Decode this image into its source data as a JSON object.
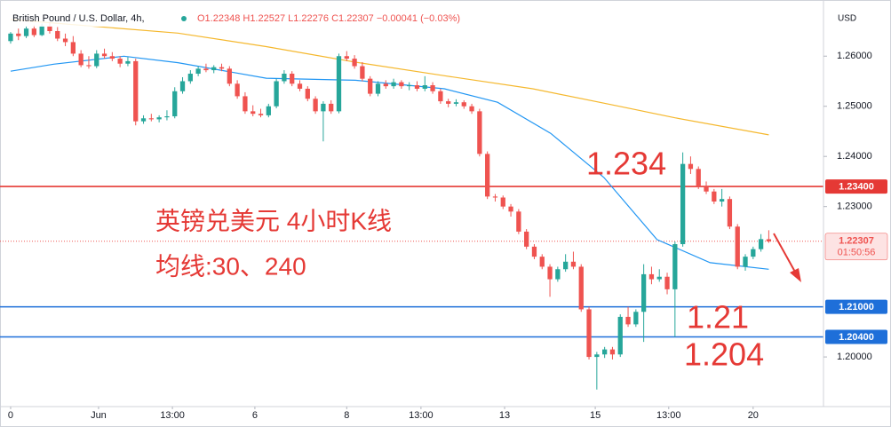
{
  "chart_data": {
    "type": "candlestick",
    "title": "British Pound / U.S. Dollar, 4h,",
    "ohlc_text": "O1.22348 H1.22527 L1.22276 C1.22307 −0.00041 (−0.03%)",
    "currency": "USD",
    "up_color": "#26a69a",
    "down_color": "#ef5350",
    "candles": [
      [
        1.263,
        1.2648,
        1.2625,
        1.2645
      ],
      [
        1.2645,
        1.2655,
        1.2632,
        1.264
      ],
      [
        1.264,
        1.266,
        1.2636,
        1.2655
      ],
      [
        1.2655,
        1.2662,
        1.2638,
        1.2642
      ],
      [
        1.2642,
        1.2665,
        1.264,
        1.266
      ],
      [
        1.266,
        1.2668,
        1.2645,
        1.265
      ],
      [
        1.265,
        1.2658,
        1.263,
        1.2635
      ],
      [
        1.2635,
        1.2645,
        1.262,
        1.2628
      ],
      [
        1.2628,
        1.264,
        1.26,
        1.2605
      ],
      [
        1.2605,
        1.2612,
        1.2578,
        1.2582
      ],
      [
        1.2582,
        1.26,
        1.2575,
        1.258
      ],
      [
        1.258,
        1.2612,
        1.2576,
        1.2605
      ],
      [
        1.2605,
        1.2615,
        1.2595,
        1.26
      ],
      [
        1.26,
        1.2608,
        1.259,
        1.2595
      ],
      [
        1.2595,
        1.26,
        1.2578,
        1.2585
      ],
      [
        1.2585,
        1.2598,
        1.258,
        1.259
      ],
      [
        1.259,
        1.2595,
        1.2462,
        1.247
      ],
      [
        1.247,
        1.2482,
        1.2465,
        1.2476
      ],
      [
        1.2476,
        1.2485,
        1.247,
        1.2474
      ],
      [
        1.2474,
        1.2482,
        1.2468,
        1.2478
      ],
      [
        1.2478,
        1.2492,
        1.2472,
        1.248
      ],
      [
        1.248,
        1.2538,
        1.2476,
        1.253
      ],
      [
        1.253,
        1.2558,
        1.2525,
        1.255
      ],
      [
        1.255,
        1.2572,
        1.2545,
        1.2565
      ],
      [
        1.2565,
        1.258,
        1.256,
        1.2575
      ],
      [
        1.2575,
        1.2585,
        1.2568,
        1.2572
      ],
      [
        1.2572,
        1.2582,
        1.2566,
        1.2578
      ],
      [
        1.2578,
        1.2585,
        1.257,
        1.2575
      ],
      [
        1.2575,
        1.258,
        1.254,
        1.2545
      ],
      [
        1.2545,
        1.2552,
        1.2515,
        1.252
      ],
      [
        1.252,
        1.2528,
        1.2485,
        1.249
      ],
      [
        1.249,
        1.2502,
        1.248,
        1.2485
      ],
      [
        1.2485,
        1.2495,
        1.2478,
        1.2482
      ],
      [
        1.2482,
        1.2505,
        1.2478,
        1.25
      ],
      [
        1.25,
        1.2555,
        1.2496,
        1.255
      ],
      [
        1.255,
        1.2572,
        1.2545,
        1.2565
      ],
      [
        1.2565,
        1.257,
        1.254,
        1.2545
      ],
      [
        1.2545,
        1.2552,
        1.253,
        1.2535
      ],
      [
        1.2535,
        1.254,
        1.251,
        1.2515
      ],
      [
        1.2515,
        1.252,
        1.2485,
        1.249
      ],
      [
        1.249,
        1.251,
        1.243,
        1.2505
      ],
      [
        1.2505,
        1.2512,
        1.2485,
        1.249
      ],
      [
        1.249,
        1.2605,
        1.2486,
        1.26
      ],
      [
        1.26,
        1.261,
        1.259,
        1.2595
      ],
      [
        1.2595,
        1.2602,
        1.2575,
        1.258
      ],
      [
        1.258,
        1.2588,
        1.255,
        1.2555
      ],
      [
        1.2555,
        1.256,
        1.252,
        1.2525
      ],
      [
        1.2525,
        1.255,
        1.252,
        1.2545
      ],
      [
        1.2545,
        1.2552,
        1.2535,
        1.254
      ],
      [
        1.254,
        1.2555,
        1.2535,
        1.2548
      ],
      [
        1.2548,
        1.2552,
        1.2535,
        1.254
      ],
      [
        1.254,
        1.2548,
        1.2532,
        1.2542
      ],
      [
        1.2542,
        1.255,
        1.253,
        1.2535
      ],
      [
        1.2535,
        1.256,
        1.253,
        1.2542
      ],
      [
        1.2542,
        1.2548,
        1.2525,
        1.253
      ],
      [
        1.253,
        1.2535,
        1.2505,
        1.251
      ],
      [
        1.251,
        1.2515,
        1.2498,
        1.2505
      ],
      [
        1.2505,
        1.2514,
        1.25,
        1.2508
      ],
      [
        1.2508,
        1.2512,
        1.2495,
        1.25
      ],
      [
        1.25,
        1.2505,
        1.2485,
        1.249
      ],
      [
        1.249,
        1.2495,
        1.24,
        1.2405
      ],
      [
        1.2405,
        1.241,
        1.2315,
        1.232
      ],
      [
        1.232,
        1.2325,
        1.231,
        1.2318
      ],
      [
        1.2318,
        1.2322,
        1.2295,
        1.23
      ],
      [
        1.23,
        1.2305,
        1.228,
        1.229
      ],
      [
        1.229,
        1.2295,
        1.2245,
        1.225
      ],
      [
        1.225,
        1.2255,
        1.2215,
        1.222
      ],
      [
        1.222,
        1.2225,
        1.2195,
        1.22
      ],
      [
        1.22,
        1.2205,
        1.2175,
        1.218
      ],
      [
        1.218,
        1.2185,
        1.212,
        1.2155
      ],
      [
        1.2155,
        1.218,
        1.215,
        1.2175
      ],
      [
        1.2175,
        1.2205,
        1.217,
        1.219
      ],
      [
        1.219,
        1.221,
        1.2175,
        1.218
      ],
      [
        1.218,
        1.2185,
        1.209,
        1.2095
      ],
      [
        1.2095,
        1.21,
        1.1995,
        1.2
      ],
      [
        1.2,
        1.201,
        1.1935,
        1.2005
      ],
      [
        1.2005,
        1.202,
        1.1998,
        1.2015
      ],
      [
        1.2015,
        1.202,
        1.1995,
        1.2005
      ],
      [
        1.2005,
        1.2085,
        1.2,
        1.208
      ],
      [
        1.208,
        1.21,
        1.206,
        1.2065
      ],
      [
        1.2065,
        1.2095,
        1.206,
        1.209
      ],
      [
        1.209,
        1.2185,
        1.203,
        1.2165
      ],
      [
        1.2165,
        1.218,
        1.2145,
        1.2155
      ],
      [
        1.2155,
        1.2175,
        1.215,
        1.216
      ],
      [
        1.216,
        1.2168,
        1.2125,
        1.2135
      ],
      [
        1.2135,
        1.223,
        1.204,
        1.2225
      ],
      [
        1.2225,
        1.2408,
        1.222,
        1.2385
      ],
      [
        1.2385,
        1.24,
        1.2365,
        1.2375
      ],
      [
        1.2375,
        1.238,
        1.2335,
        1.234
      ],
      [
        1.234,
        1.235,
        1.2325,
        1.233
      ],
      [
        1.233,
        1.2335,
        1.2305,
        1.231
      ],
      [
        1.231,
        1.2335,
        1.23,
        1.2315
      ],
      [
        1.2315,
        1.232,
        1.2255,
        1.226
      ],
      [
        1.226,
        1.2265,
        1.2175,
        1.218
      ],
      [
        1.218,
        1.2205,
        1.2172,
        1.22
      ],
      [
        1.22,
        1.222,
        1.2195,
        1.2215
      ],
      [
        1.2215,
        1.2245,
        1.221,
        1.2235
      ],
      [
        1.22348,
        1.22527,
        1.22276,
        1.22307
      ]
    ],
    "lines": [
      {
        "color": "#f5b82e",
        "x": [
          0,
          21.4,
          32.7,
          44.1,
          55.5,
          66.8,
          78.2,
          85,
          97
        ],
        "values": [
          1.2673,
          1.2646,
          1.2619,
          1.2588,
          1.2561,
          1.2535,
          1.2499,
          1.2477,
          1.2443
        ]
      },
      {
        "color": "#2196f3",
        "x": [
          0,
          5.5,
          14.5,
          21.4,
          32.7,
          44.1,
          55.5,
          62.3,
          69.1,
          75.9,
          82.7,
          89.5,
          97
        ],
        "values": [
          1.257,
          1.2584,
          1.26,
          1.2587,
          1.2556,
          1.2552,
          1.2535,
          1.2508,
          1.2446,
          1.2358,
          1.2234,
          1.2188,
          1.2175
        ]
      }
    ],
    "levels": [
      {
        "value": 1.234,
        "label": "1.23400",
        "color": "#e53935"
      },
      {
        "value": 1.21,
        "label": "1.21000",
        "color": "#1e6fd9"
      },
      {
        "value": 1.204,
        "label": "1.20400",
        "color": "#1e6fd9"
      }
    ],
    "last_price": {
      "value": 1.22307,
      "label": "1.22307",
      "countdown": "01:50:56",
      "color": "#ef5350"
    },
    "xlim": [
      -1.36,
      104
    ],
    "ylim": [
      1.1901,
      1.2712
    ],
    "xticks": [
      0,
      {
        "value": 11.25,
        "label": "Jun"
      },
      {
        "value": 20.7,
        "label": "13:00"
      },
      {
        "value": 31.25,
        "label": "6"
      },
      {
        "value": 43,
        "label": "8"
      },
      {
        "value": 52.5,
        "label": "13:00"
      },
      {
        "value": 63.2,
        "label": "13"
      },
      {
        "value": 74.8,
        "label": "15"
      },
      {
        "value": 84.2,
        "label": "13:00"
      },
      {
        "value": 95,
        "label": "20"
      }
    ],
    "yticks": [
      {
        "value": 1.26,
        "label": "1.26000"
      },
      {
        "value": 1.25,
        "label": "1.25000"
      },
      {
        "value": 1.24,
        "label": "1.24000"
      },
      {
        "value": 1.23,
        "label": "1.23000"
      },
      {
        "value": 1.2,
        "label": "1.20000"
      }
    ],
    "grid": false,
    "annotations": [
      "1.234",
      "1.21",
      "1.204",
      "英镑兑美元 4小时K线",
      "均线:30、240"
    ]
  }
}
